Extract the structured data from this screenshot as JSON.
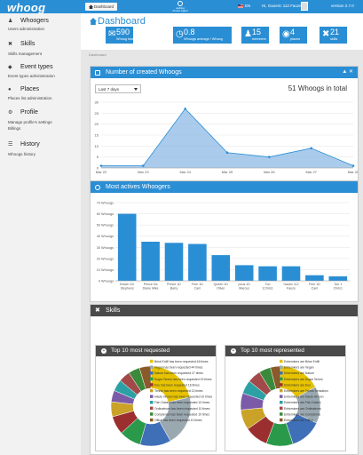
{
  "header": {
    "logo": "whoog",
    "nav": "Dashboard",
    "center_logo_line1": "weblog",
    "center_logo_line2": "Amore Agent",
    "lang": "EN",
    "user": "Hi, Gaoeric 112 Fauze",
    "version": "version 2.7.0"
  },
  "sidebar": {
    "items": [
      {
        "title": "Whoogers",
        "sub": "Users administration",
        "icon": "users-icon"
      },
      {
        "title": "Skills",
        "sub": "Skills management",
        "icon": "wrench-icon"
      },
      {
        "title": "Event types",
        "sub": "Event types administration",
        "icon": "tag-icon"
      },
      {
        "title": "Places",
        "sub": "Places list administration",
        "icon": "map-marker-icon"
      },
      {
        "title": "Profile",
        "sub": "Manage profile's settings",
        "sub2": "Billings",
        "icon": "gear-icon"
      },
      {
        "title": "History",
        "sub": "Whoogs history",
        "icon": "list-icon"
      }
    ]
  },
  "dashboard": {
    "title": "Dashboard",
    "breadcrumb": "Dashboard",
    "stats": [
      {
        "value": "590",
        "label": "Whoog total",
        "icon": "chat-icon"
      },
      {
        "value": "0.8",
        "label": "Whoogs average / Whoog",
        "icon": "clock-icon"
      },
      {
        "value": "15",
        "label": "members",
        "icon": "users-icon"
      },
      {
        "value": "4",
        "label": "places",
        "icon": "globe-icon"
      },
      {
        "value": "21",
        "label": "skills",
        "icon": "wrench-icon"
      }
    ]
  },
  "whoogs_panel": {
    "title": "Number of created Whoogs",
    "period": "Last 7 days",
    "total": "51 Whoogs in total"
  },
  "actives_panel": {
    "title": "Most actives Whoogers"
  },
  "skills_panel": {
    "title": "Skills",
    "requested_title": "Top 10 most requested",
    "represented_title": "Top 10 most represented"
  },
  "colors": {
    "accent": "#2a8ed4",
    "dark": "#4a4a4a",
    "fill": "#8db9e6"
  },
  "chart_data": [
    {
      "type": "area",
      "title": "",
      "categories": [
        "Mar 22",
        "Mar 23",
        "Mar 24",
        "Mar 25",
        "Mar 26",
        "Mar 27",
        "Mar 28"
      ],
      "values": [
        1,
        1,
        27,
        7,
        5,
        9,
        1
      ],
      "ylim": [
        0,
        30
      ],
      "yticks": [
        0,
        5,
        10,
        15,
        20,
        25,
        30
      ],
      "grid": true
    },
    {
      "type": "bar",
      "title": "",
      "categories": [
        "Brown 1D Stephens",
        "Prince Da Diane Mike",
        "Prince 1D Barry",
        "Ferri 1D Cam",
        "Queen 1D Oliver",
        "pous 1D Marcus",
        "Tori 1Chris1",
        "Gaoric 112 Fauze",
        "Ferri 1D Cam",
        "Torr 1 Chris1"
      ],
      "values": [
        60,
        35,
        34,
        33,
        23,
        14,
        13,
        13,
        5,
        4
      ],
      "ylim": [
        0,
        70
      ],
      "yticks": [
        0,
        10,
        20,
        30,
        40,
        50,
        60,
        70
      ],
      "yunit": "Whoogs",
      "grid": true
    },
    {
      "type": "pie",
      "title": "",
      "legend": [
        "Brisk Enfill has been requested 46 times",
        "Vegan has been requested 44 times",
        "Nature has been requested 27 times",
        "Sugar Tennis has been requested 19 times",
        "Kou has been requested 16 times",
        "Tennis has been requested 13 times",
        "Haute Hivoon has been requested 10 times",
        "Fish Gastro has been requested 10 times",
        "Ordinateurs has been requested 10 times",
        "Comptence has been requested 10 times",
        "Office has been requested 10 times"
      ],
      "values": [
        46,
        44,
        27,
        19,
        16,
        13,
        10,
        10,
        10,
        10,
        10
      ],
      "colors": [
        "#e6c200",
        "#9aa8b0",
        "#3f6fb6",
        "#2a9a4a",
        "#9b2f2f",
        "#c9a227",
        "#7b5ba8",
        "#2ca0a5",
        "#a24a4a",
        "#3b8a3b",
        "#8a5a2a"
      ]
    },
    {
      "type": "pie",
      "title": "",
      "legend": [
        "Enbemkers are Brise Enfill",
        "Enbemkers are Vegan",
        "Enbemkers are Nature",
        "Enbemkers are Sugar Tennis",
        "Enbemkers are Kou",
        "Enbemkers are Tennis Sensation",
        "Enbemkers are Haute Hivoon",
        "Enbemkers are Fish Gastro",
        "Enbemkers are Ordinateurs",
        "Enbemkers are Comptence",
        "Enbemkers are Office"
      ],
      "values": [
        25,
        22,
        19,
        16,
        14,
        12,
        10,
        8,
        8,
        7,
        6
      ],
      "colors": [
        "#e6c200",
        "#9aa8b0",
        "#3f6fb6",
        "#2a9a4a",
        "#9b2f2f",
        "#c9a227",
        "#7b5ba8",
        "#2ca0a5",
        "#a24a4a",
        "#3b8a3b",
        "#8a5a2a"
      ]
    }
  ]
}
